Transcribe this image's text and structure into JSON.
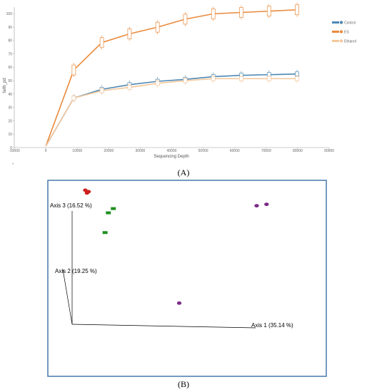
{
  "chart_data": [
    {
      "type": "line",
      "ylabel": "faith_pd",
      "xlabel": "Sequencing Depth",
      "xlim": [
        -10000,
        90000
      ],
      "ylim": [
        0,
        105
      ],
      "x_ticks": [
        "-10000",
        "0",
        "10000",
        "20000",
        "30000",
        "40000",
        "50000",
        "60000",
        "70000",
        "80000",
        "90000"
      ],
      "y_ticks": [
        "0",
        "10",
        "20",
        "30",
        "40",
        "50",
        "60",
        "70",
        "80",
        "90",
        "100"
      ],
      "x": [
        0,
        8900,
        17800,
        26600,
        35500,
        44300,
        53200,
        62100,
        70900,
        79800
      ],
      "series": [
        {
          "name": "Control",
          "color": "#4d88b4",
          "values": [
            1,
            37,
            43.5,
            47,
            49.5,
            51,
            53,
            54,
            54.5,
            55
          ]
        },
        {
          "name": "ES",
          "color": "#e98a3c",
          "values": [
            1,
            58,
            78.5,
            85,
            90,
            96,
            100,
            101,
            102,
            103
          ]
        },
        {
          "name": "Ethanol",
          "color": "#f3c79a",
          "values": [
            1,
            37,
            42.5,
            45,
            48,
            50,
            51.5,
            51.5,
            51.5,
            51.5
          ]
        }
      ],
      "star": "*",
      "panel_label": "(A)"
    },
    {
      "type": "scatter",
      "axis_labels": {
        "axis1": "Axis 1 (35.14 %)",
        "axis2": "Axis 2 (19.25 %)",
        "axis3": "Axis 3 (16.52 %)"
      },
      "groups": [
        {
          "color": "#cc1f1f",
          "points": [
            [
              -0.42,
              0.95
            ],
            [
              -0.41,
              0.93
            ],
            [
              -0.4,
              0.94
            ]
          ]
        },
        {
          "color": "#1e8f1e",
          "points": [
            [
              -0.28,
              0.79
            ],
            [
              -0.25,
              0.82
            ],
            [
              -0.3,
              0.65
            ]
          ]
        },
        {
          "color": "#7b2a86",
          "points": [
            [
              0.62,
              0.84
            ],
            [
              0.68,
              0.85
            ],
            [
              0.15,
              0.15
            ]
          ]
        }
      ],
      "panel_label": "(B)"
    }
  ]
}
